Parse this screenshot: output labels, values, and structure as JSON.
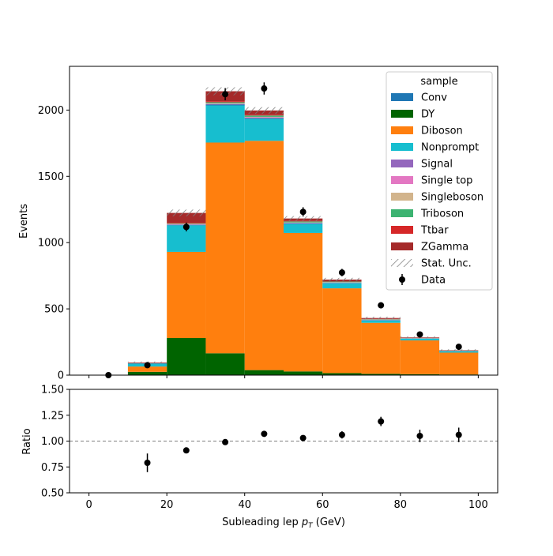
{
  "chart_data": [
    {
      "type": "bar",
      "stacked": true,
      "bin_edges": [
        0,
        10,
        20,
        30,
        40,
        50,
        60,
        70,
        80,
        90,
        100
      ],
      "series": [
        {
          "name": "DY",
          "color": "#006400",
          "values": [
            0,
            25,
            280,
            165,
            38,
            28,
            15,
            10,
            7,
            5
          ]
        },
        {
          "name": "Diboson",
          "color": "#ff7f0e",
          "values": [
            0,
            40,
            650,
            1590,
            1730,
            1045,
            640,
            385,
            255,
            165
          ]
        },
        {
          "name": "Nonprompt",
          "color": "#17becf",
          "values": [
            0,
            22,
            200,
            280,
            165,
            68,
            38,
            18,
            12,
            10
          ]
        },
        {
          "name": "Conv",
          "color": "#1f77b4",
          "values": [
            0,
            2,
            4,
            6,
            6,
            4,
            3,
            2,
            1,
            1
          ]
        },
        {
          "name": "Signal",
          "color": "#9467bd",
          "values": [
            0,
            0,
            3,
            4,
            4,
            3,
            2,
            2,
            1,
            1
          ]
        },
        {
          "name": "Single top",
          "color": "#e377c2",
          "values": [
            0,
            0,
            2,
            3,
            3,
            2,
            1,
            1,
            1,
            0
          ]
        },
        {
          "name": "Singleboson",
          "color": "#d2b48c",
          "values": [
            0,
            0,
            2,
            3,
            3,
            2,
            2,
            1,
            1,
            0
          ]
        },
        {
          "name": "Triboson",
          "color": "#3cb371",
          "values": [
            0,
            0,
            3,
            8,
            10,
            8,
            5,
            3,
            2,
            2
          ]
        },
        {
          "name": "Ttbar",
          "color": "#d62728",
          "values": [
            0,
            1,
            5,
            8,
            6,
            4,
            3,
            2,
            1,
            1
          ]
        },
        {
          "name": "ZGamma",
          "color": "#a52a2a",
          "values": [
            0,
            5,
            75,
            75,
            32,
            18,
            12,
            7,
            4,
            3
          ]
        }
      ],
      "stat_unc": [
        0,
        8,
        25,
        30,
        25,
        18,
        13,
        10,
        8,
        7
      ],
      "data_points": {
        "name": "Data",
        "x": [
          5,
          15,
          25,
          35,
          45,
          55,
          65,
          75,
          85,
          95
        ],
        "y": [
          0,
          75,
          1118,
          2120,
          2163,
          1232,
          774,
          527,
          307,
          214
        ],
        "yerr": [
          0,
          9,
          33,
          46,
          46,
          35,
          28,
          23,
          18,
          15
        ]
      },
      "xlim": [
        -5,
        105
      ],
      "ylim": [
        0,
        2330
      ],
      "ylabel": "Events",
      "yticks": [
        0,
        500,
        1000,
        1500,
        2000
      ],
      "legend": {
        "title": "sample",
        "placement": "top-right",
        "entries": [
          {
            "label": "Conv",
            "color": "#1f77b4",
            "kind": "patch"
          },
          {
            "label": "DY",
            "color": "#006400",
            "kind": "patch"
          },
          {
            "label": "Diboson",
            "color": "#ff7f0e",
            "kind": "patch"
          },
          {
            "label": "Nonprompt",
            "color": "#17becf",
            "kind": "patch"
          },
          {
            "label": "Signal",
            "color": "#9467bd",
            "kind": "patch"
          },
          {
            "label": "Single top",
            "color": "#e377c2",
            "kind": "patch"
          },
          {
            "label": "Singleboson",
            "color": "#d2b48c",
            "kind": "patch"
          },
          {
            "label": "Triboson",
            "color": "#3cb371",
            "kind": "patch"
          },
          {
            "label": "Ttbar",
            "color": "#d62728",
            "kind": "patch"
          },
          {
            "label": "ZGamma",
            "color": "#a52a2a",
            "kind": "patch"
          },
          {
            "label": "Stat. Unc.",
            "color": "#808080",
            "kind": "hatch"
          },
          {
            "label": "Data",
            "color": "#000000",
            "kind": "errorbar"
          }
        ]
      }
    },
    {
      "type": "scatter",
      "x": [
        15,
        25,
        35,
        45,
        55,
        65,
        75,
        85,
        95
      ],
      "y": [
        0.79,
        0.91,
        0.99,
        1.07,
        1.03,
        1.06,
        1.19,
        1.05,
        1.06
      ],
      "yerr": [
        0.09,
        0.025,
        0.02,
        0.02,
        0.025,
        0.035,
        0.045,
        0.06,
        0.07
      ],
      "reference_line": 1.0,
      "xlim": [
        -5,
        105
      ],
      "ylim": [
        0.5,
        1.5
      ],
      "ylabel": "Ratio",
      "xlabel": "Subleading lep pT (GeV)",
      "xticks": [
        0,
        20,
        40,
        60,
        80,
        100
      ],
      "yticks": [
        "0.50",
        "0.75",
        "1.00",
        "1.25",
        "1.50"
      ]
    }
  ],
  "labels": {
    "ylabel_main": "Events",
    "ylabel_ratio": "Ratio",
    "xlabel_main": "Subleading lep ",
    "xlabel_sym": "p",
    "xlabel_sub": "T",
    "xlabel_unit": " (GeV)"
  }
}
